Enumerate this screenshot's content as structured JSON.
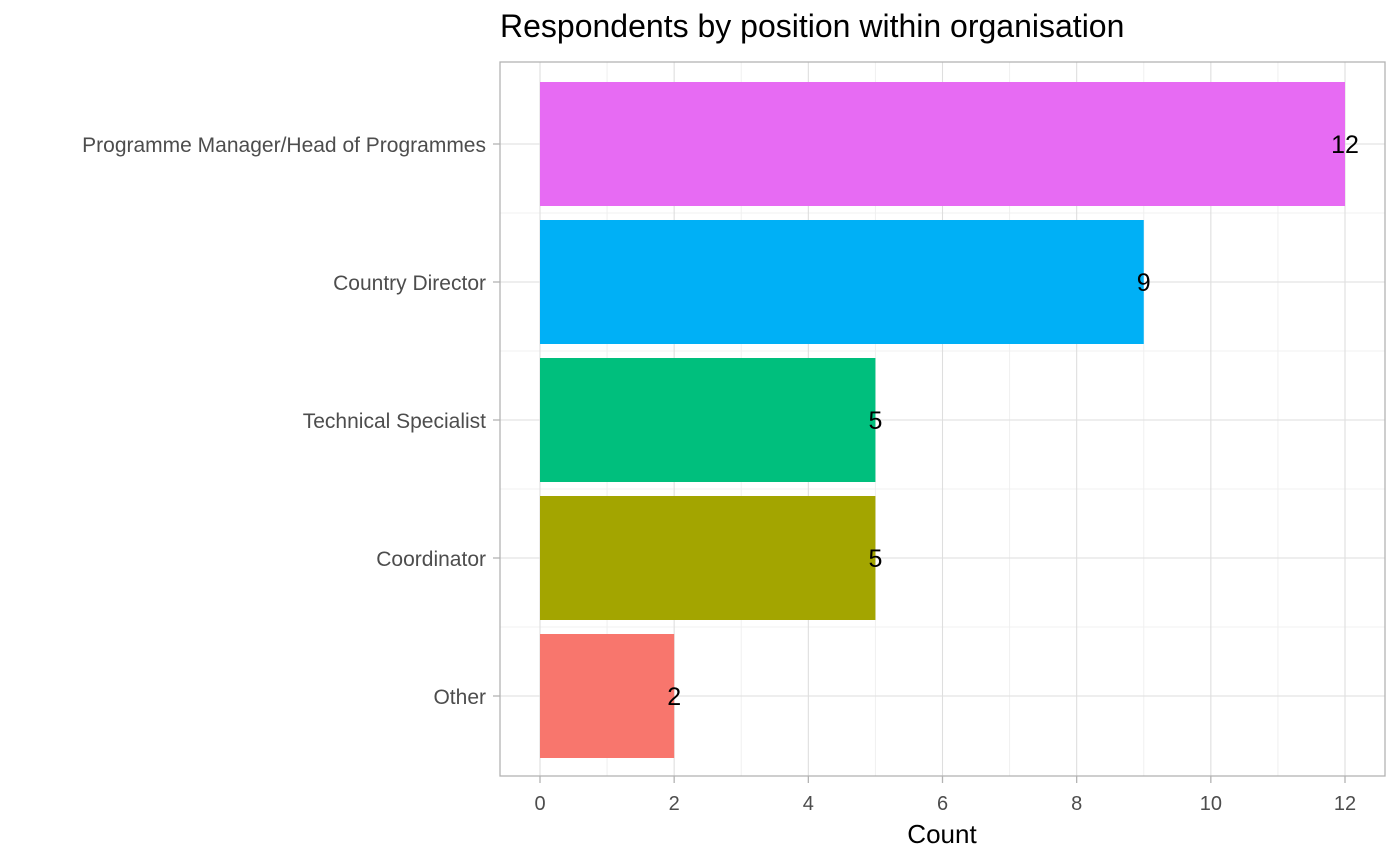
{
  "chart_data": {
    "type": "bar",
    "orientation": "horizontal",
    "title": "Respondents by position within organisation",
    "xlabel": "Count",
    "ylabel": "",
    "categories": [
      "Programme Manager/Head of Programmes",
      "Country Director",
      "Technical Specialist",
      "Coordinator",
      "Other"
    ],
    "values": [
      12,
      9,
      5,
      5,
      2
    ],
    "colors": [
      "#E76BF3",
      "#00B0F6",
      "#00BF7D",
      "#A3A500",
      "#F8766D"
    ],
    "xlim": [
      0,
      12
    ],
    "xticks": [
      0,
      2,
      4,
      6,
      8,
      10,
      12
    ],
    "grid": true,
    "legend": "none",
    "data_labels": true
  }
}
